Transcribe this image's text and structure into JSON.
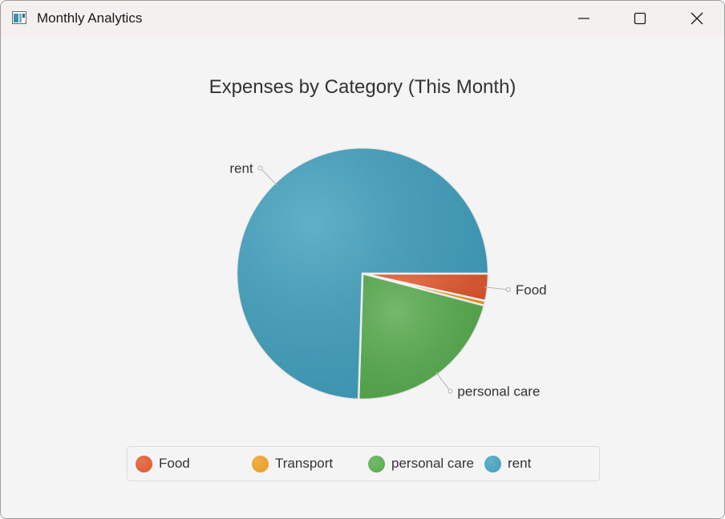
{
  "window": {
    "title": "Monthly Analytics",
    "icon": "app-window-icon",
    "controls": [
      "minimize-icon",
      "maximize-icon",
      "close-icon"
    ]
  },
  "chart_data": {
    "type": "pie",
    "title": "Expenses by Category (This Month)",
    "start_angle_deg": 0,
    "direction": "clockwise",
    "slices": [
      {
        "name": "Food",
        "value": 3.5,
        "color": "#e0562b",
        "label": "Food"
      },
      {
        "name": "Transport",
        "value": 0.6,
        "color": "#ec9c1e",
        "label": ""
      },
      {
        "name": "personal care",
        "value": 21.4,
        "color": "#55ab4c",
        "label": "personal care"
      },
      {
        "name": "rent",
        "value": 74.5,
        "color": "#3f9fbd",
        "label": "rent"
      }
    ],
    "legend": {
      "position": "bottom",
      "items": [
        "Food",
        "Transport",
        "personal care",
        "rent"
      ]
    }
  }
}
